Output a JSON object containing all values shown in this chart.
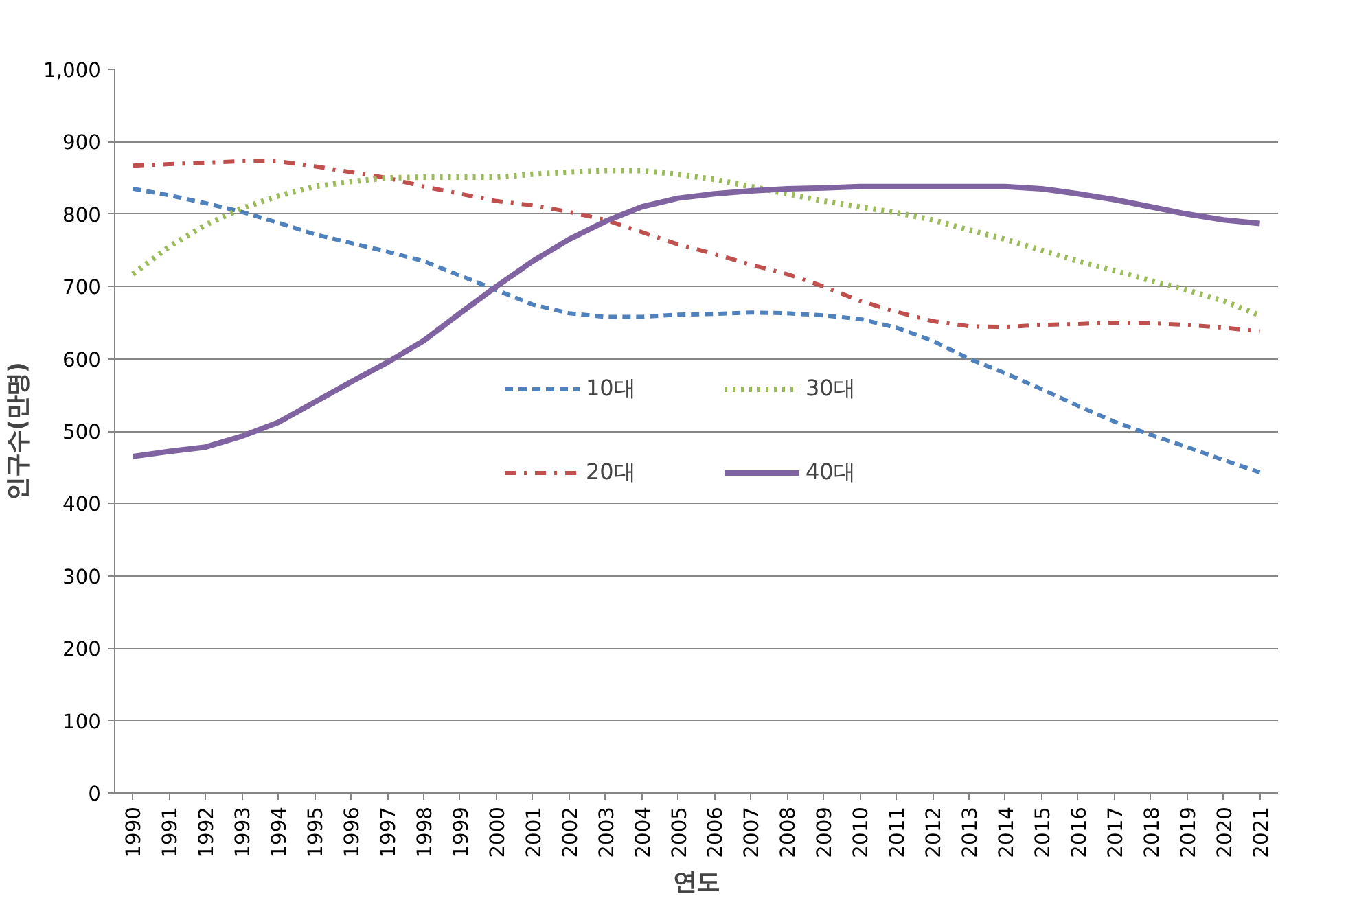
{
  "chart_data": {
    "type": "line",
    "xlabel": "연도",
    "ylabel": "인구수(만명)",
    "categories": [
      "1990",
      "1991",
      "1992",
      "1993",
      "1994",
      "1995",
      "1996",
      "1997",
      "1998",
      "1999",
      "2000",
      "2001",
      "2002",
      "2003",
      "2004",
      "2005",
      "2006",
      "2007",
      "2008",
      "2009",
      "2010",
      "2011",
      "2012",
      "2013",
      "2014",
      "2015",
      "2016",
      "2017",
      "2018",
      "2019",
      "2020",
      "2021"
    ],
    "ylim": [
      0,
      1000
    ],
    "yticks": [
      0,
      100,
      200,
      300,
      400,
      500,
      600,
      700,
      800,
      900,
      {
        "value": 1000,
        "label": "1,000"
      }
    ],
    "grid": "y",
    "legend": "center",
    "marker": "none",
    "series": [
      {
        "name": "10대",
        "color": "#4f81bd",
        "line_style": "dashed",
        "values": [
          835,
          826,
          815,
          803,
          788,
          772,
          760,
          748,
          735,
          715,
          695,
          675,
          663,
          658,
          658,
          661,
          662,
          664,
          663,
          660,
          655,
          643,
          625,
          600,
          580,
          558,
          535,
          513,
          495,
          478,
          460,
          443
        ]
      },
      {
        "name": "20대",
        "color": "#c0504d",
        "line_style": "dashdot",
        "values": [
          867,
          869,
          871,
          873,
          873,
          866,
          858,
          850,
          838,
          828,
          818,
          812,
          803,
          792,
          775,
          758,
          745,
          730,
          717,
          700,
          680,
          665,
          652,
          645,
          644,
          647,
          648,
          650,
          649,
          647,
          643,
          638
        ]
      },
      {
        "name": "30대",
        "color": "#9bbb59",
        "line_style": "dotted",
        "values": [
          717,
          755,
          785,
          808,
          825,
          838,
          845,
          850,
          851,
          851,
          851,
          855,
          858,
          860,
          860,
          855,
          848,
          838,
          828,
          818,
          810,
          802,
          792,
          778,
          765,
          750,
          735,
          722,
          708,
          695,
          680,
          660
        ]
      },
      {
        "name": "40대",
        "color": "#8064a2",
        "line_style": "solid",
        "values": [
          465,
          472,
          478,
          493,
          512,
          540,
          568,
          595,
          625,
          663,
          700,
          735,
          765,
          790,
          810,
          822,
          828,
          832,
          835,
          836,
          838,
          838,
          838,
          838,
          838,
          835,
          828,
          820,
          810,
          800,
          792,
          787
        ]
      }
    ]
  }
}
